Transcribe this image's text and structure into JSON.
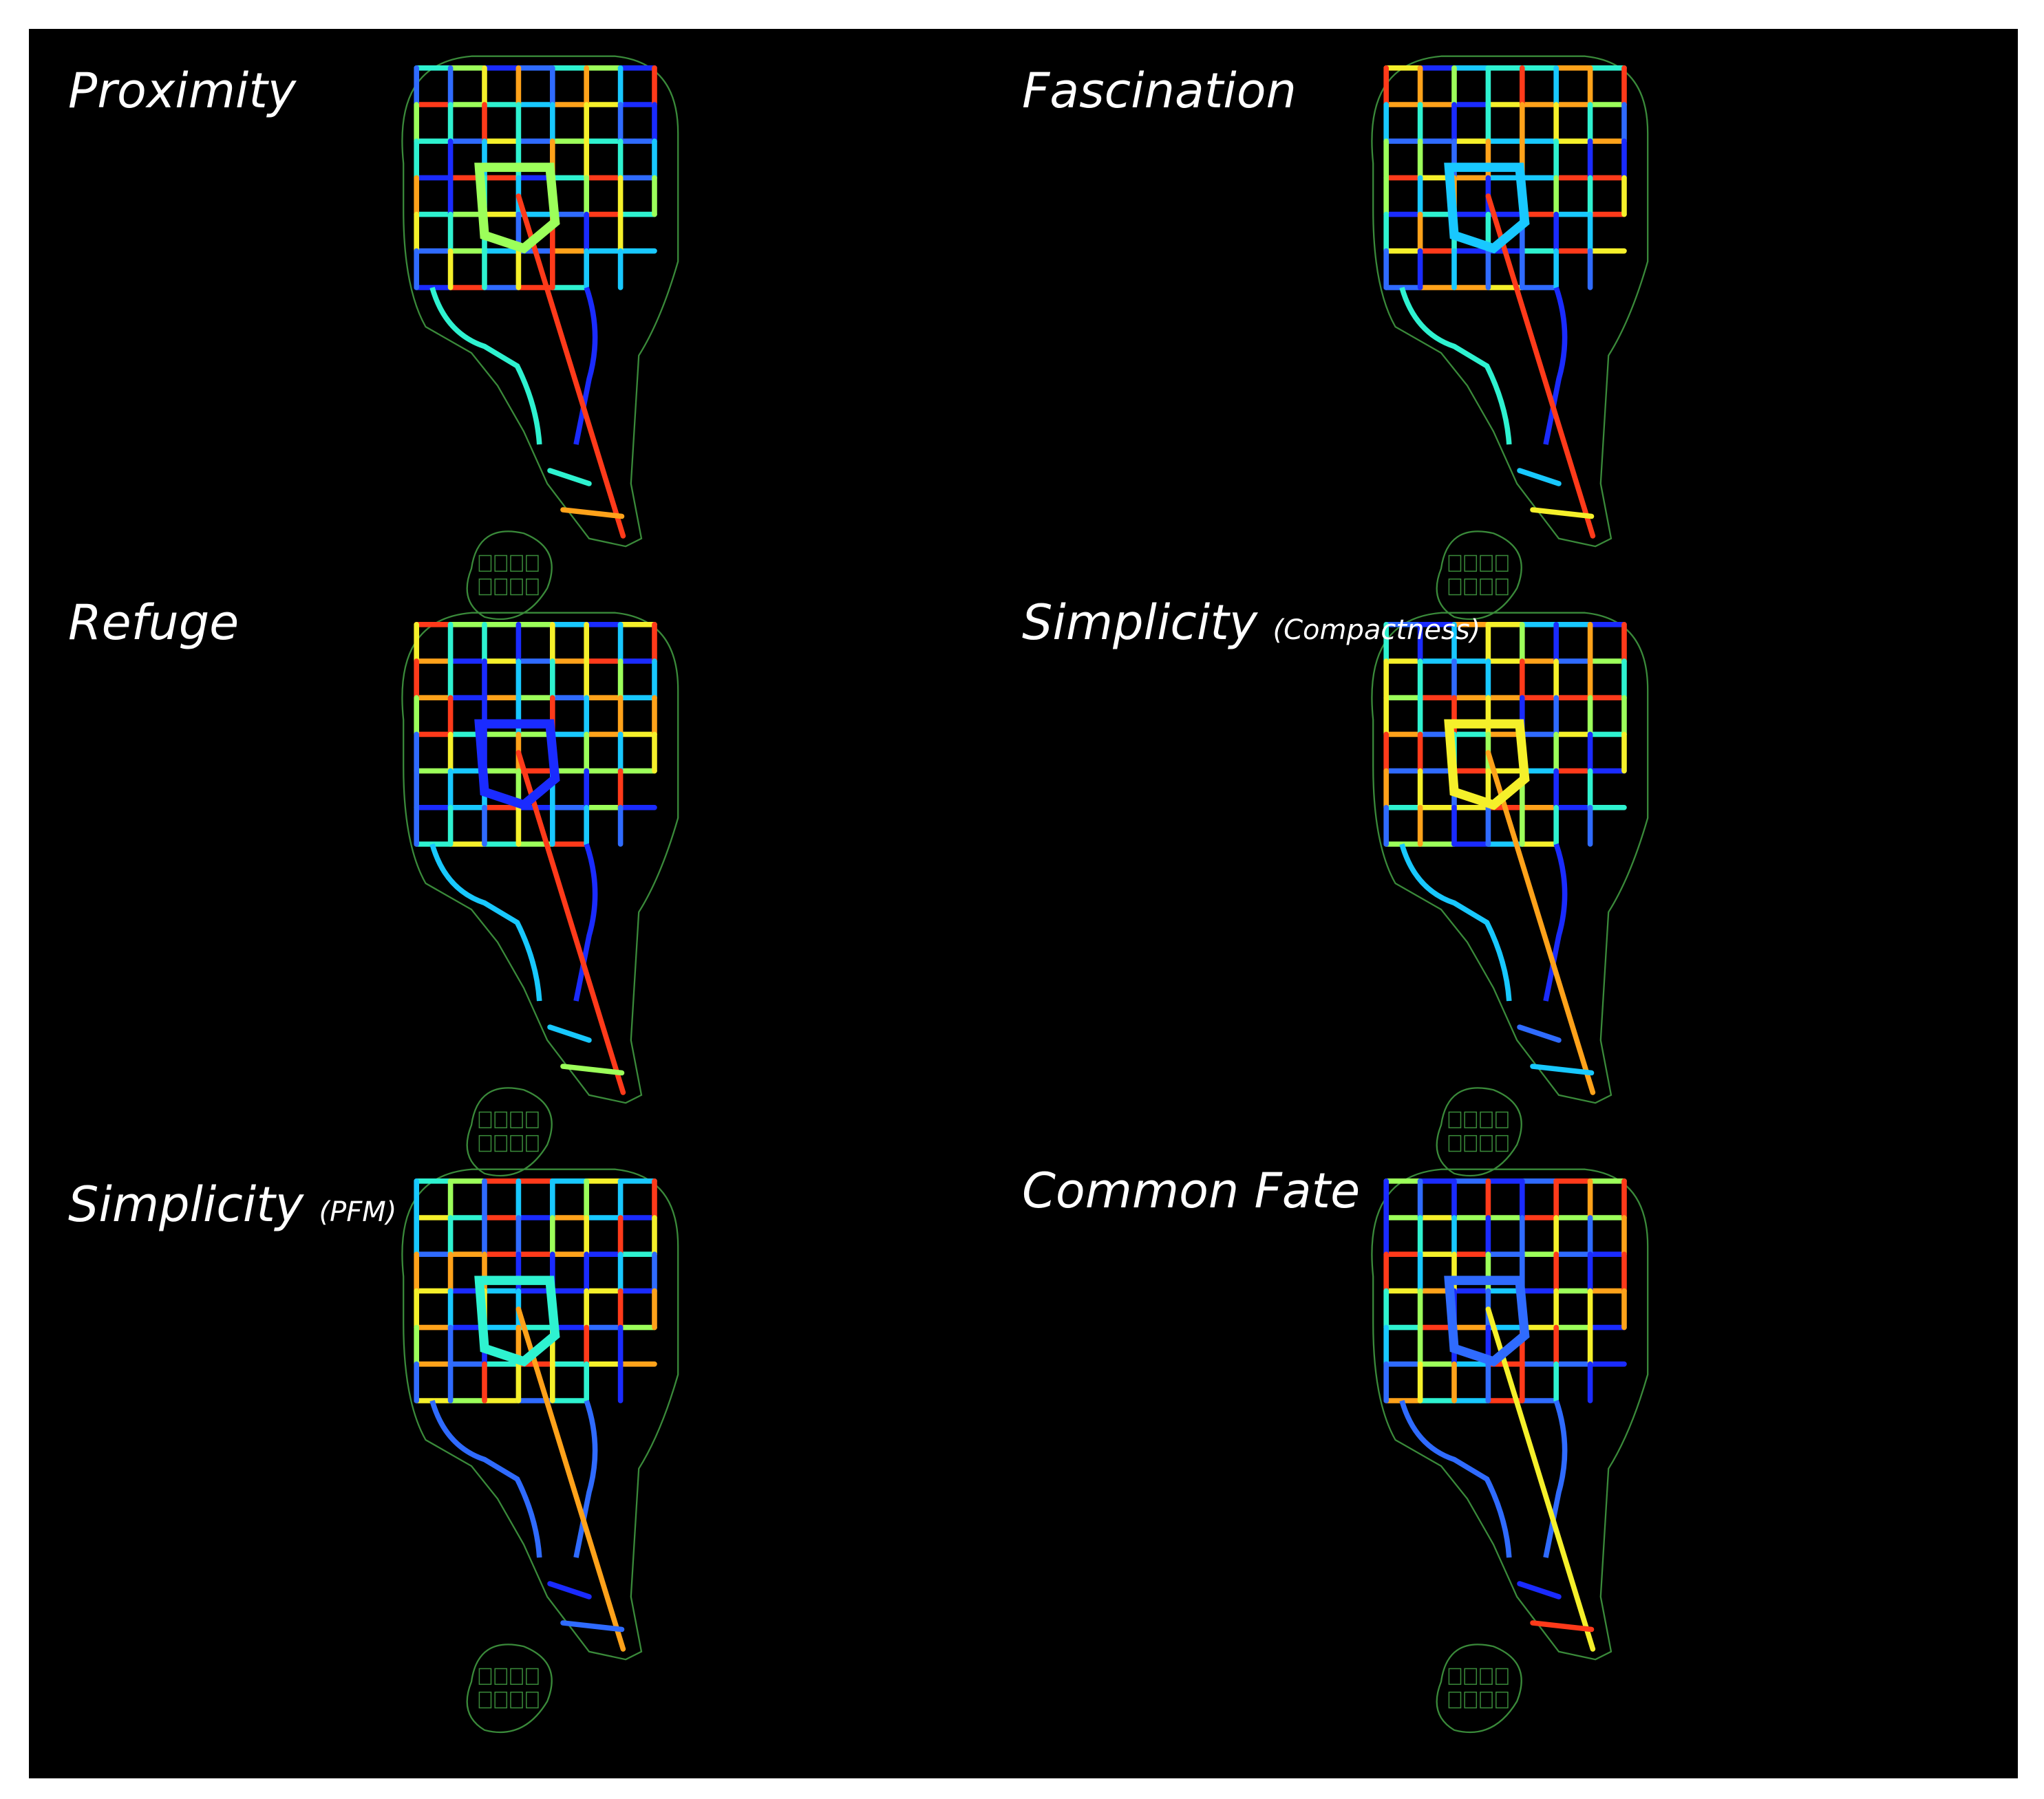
{
  "panels": [
    {
      "title": "Proximity"
    },
    {
      "title": "Fascination"
    },
    {
      "title": "Refuge"
    },
    {
      "title": "Simplicity",
      "subtitle": "(Compactness)"
    },
    {
      "title": "Simplicity",
      "subtitle": "(PFM)"
    },
    {
      "title": "Common Fate"
    }
  ]
}
